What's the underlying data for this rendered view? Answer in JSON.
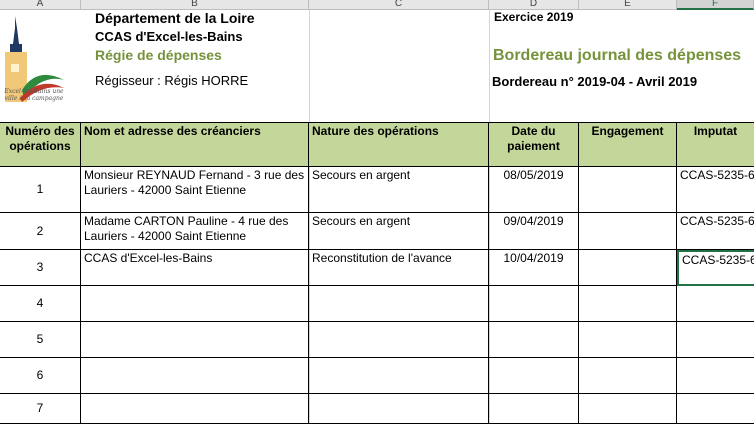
{
  "columns": [
    "A",
    "B",
    "C",
    "D",
    "E",
    "F"
  ],
  "header": {
    "dept": "Département de la Loire",
    "ccas": "CCAS d'Excel-les-Bains",
    "regie": "Régie de dépenses",
    "regisseur": "Régisseur : Régis HORRE",
    "exercice": "Exercice 2019",
    "title": "Bordereau journal des dépenses",
    "bordereau": "Bordereau n° 2019-04 - Avril 2019",
    "logo_text": "Excel-les-Bains une ville à la campagne"
  },
  "table": {
    "headers": [
      "Numéro des opérations",
      "Nom et adresse des créanciers",
      "Nature des opérations",
      "Date du paiement",
      "Engagement",
      "Imputat"
    ],
    "rows": [
      [
        "1",
        "Monsieur REYNAUD Fernand - 3 rue des Lauriers - 42000 Saint Etienne",
        "Secours en argent",
        "08/05/2019",
        "",
        "CCAS-5235-6"
      ],
      [
        "2",
        "Madame CARTON Pauline - 4 rue des Lauriers - 42000 Saint Etienne",
        "Secours en argent",
        "09/04/2019",
        "",
        "CCAS-5235-6"
      ],
      [
        "3",
        "CCAS d'Excel-les-Bains",
        "Reconstitution de l'avance",
        "10/04/2019",
        "",
        "CCAS-5235-6"
      ],
      [
        "4",
        "",
        "",
        "",
        "",
        ""
      ],
      [
        "5",
        "",
        "",
        "",
        "",
        ""
      ],
      [
        "6",
        "",
        "",
        "",
        "",
        ""
      ],
      [
        "7",
        "",
        "",
        "",
        "",
        ""
      ]
    ]
  },
  "colors": {
    "header_green": "#c4d79b",
    "title_green": "#76933c",
    "selection": "#217346"
  }
}
